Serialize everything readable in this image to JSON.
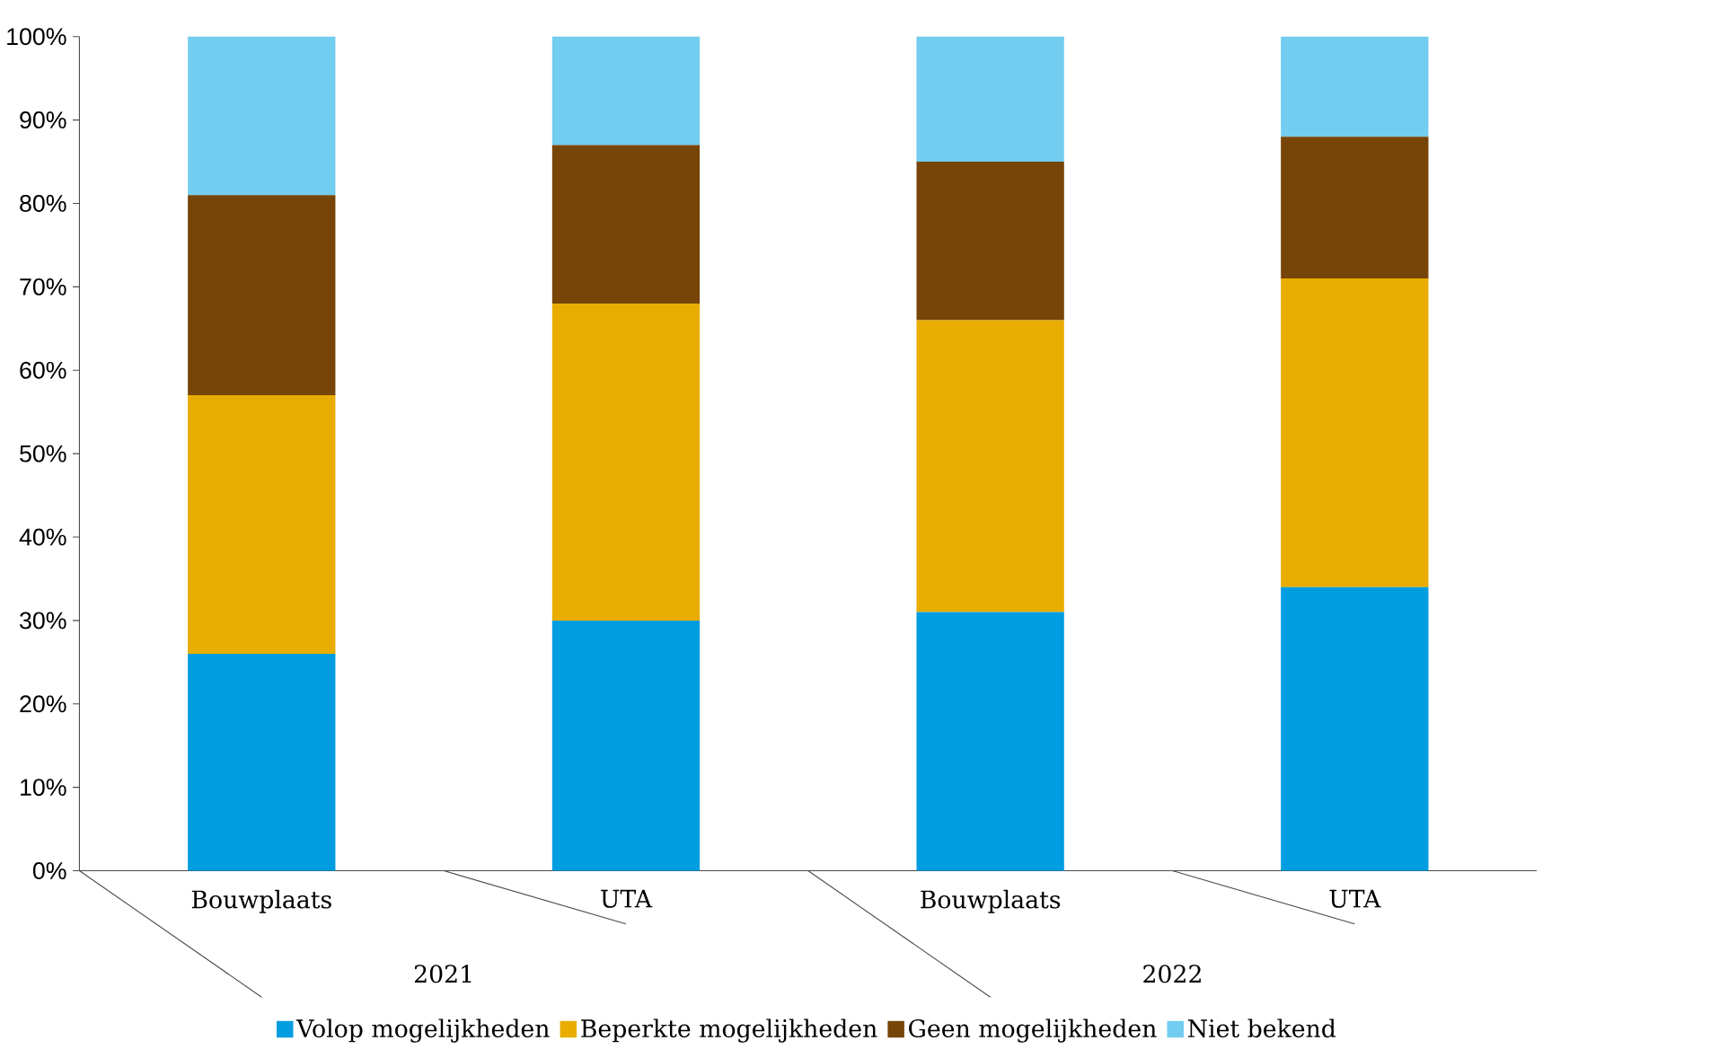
{
  "chart_data": {
    "type": "bar",
    "stacked": true,
    "categories": [
      "Bouwplaats",
      "UTA",
      "Bouwplaats",
      "UTA"
    ],
    "series": [
      {
        "name": "Volop mogelijkheden",
        "color": "#009de0",
        "values": [
          26,
          30,
          31,
          34
        ]
      },
      {
        "name": "Beperkte mogelijkheden",
        "color": "#e8ad00",
        "values": [
          31,
          38,
          35,
          37
        ]
      },
      {
        "name": "Geen mogelijkheden",
        "color": "#774508",
        "values": [
          24,
          19,
          19,
          17
        ]
      },
      {
        "name": "Niet bekend",
        "color": "#73cdf0",
        "values": [
          19,
          13,
          15,
          12
        ]
      }
    ],
    "annotations": [
      "2021",
      "2022"
    ],
    "ylim": [
      0,
      100
    ],
    "yticks": [
      {
        "value": 0,
        "label": "0%"
      },
      {
        "value": 10,
        "label": "10%"
      },
      {
        "value": 20,
        "label": "20%"
      },
      {
        "value": 30,
        "label": "30%"
      },
      {
        "value": 40,
        "label": "40%"
      },
      {
        "value": 50,
        "label": "50%"
      },
      {
        "value": 60,
        "label": "60%"
      },
      {
        "value": 70,
        "label": "70%"
      },
      {
        "value": 80,
        "label": "80%"
      },
      {
        "value": 90,
        "label": "90%"
      },
      {
        "value": 100,
        "label": "100%"
      }
    ],
    "legend": "bottom"
  }
}
